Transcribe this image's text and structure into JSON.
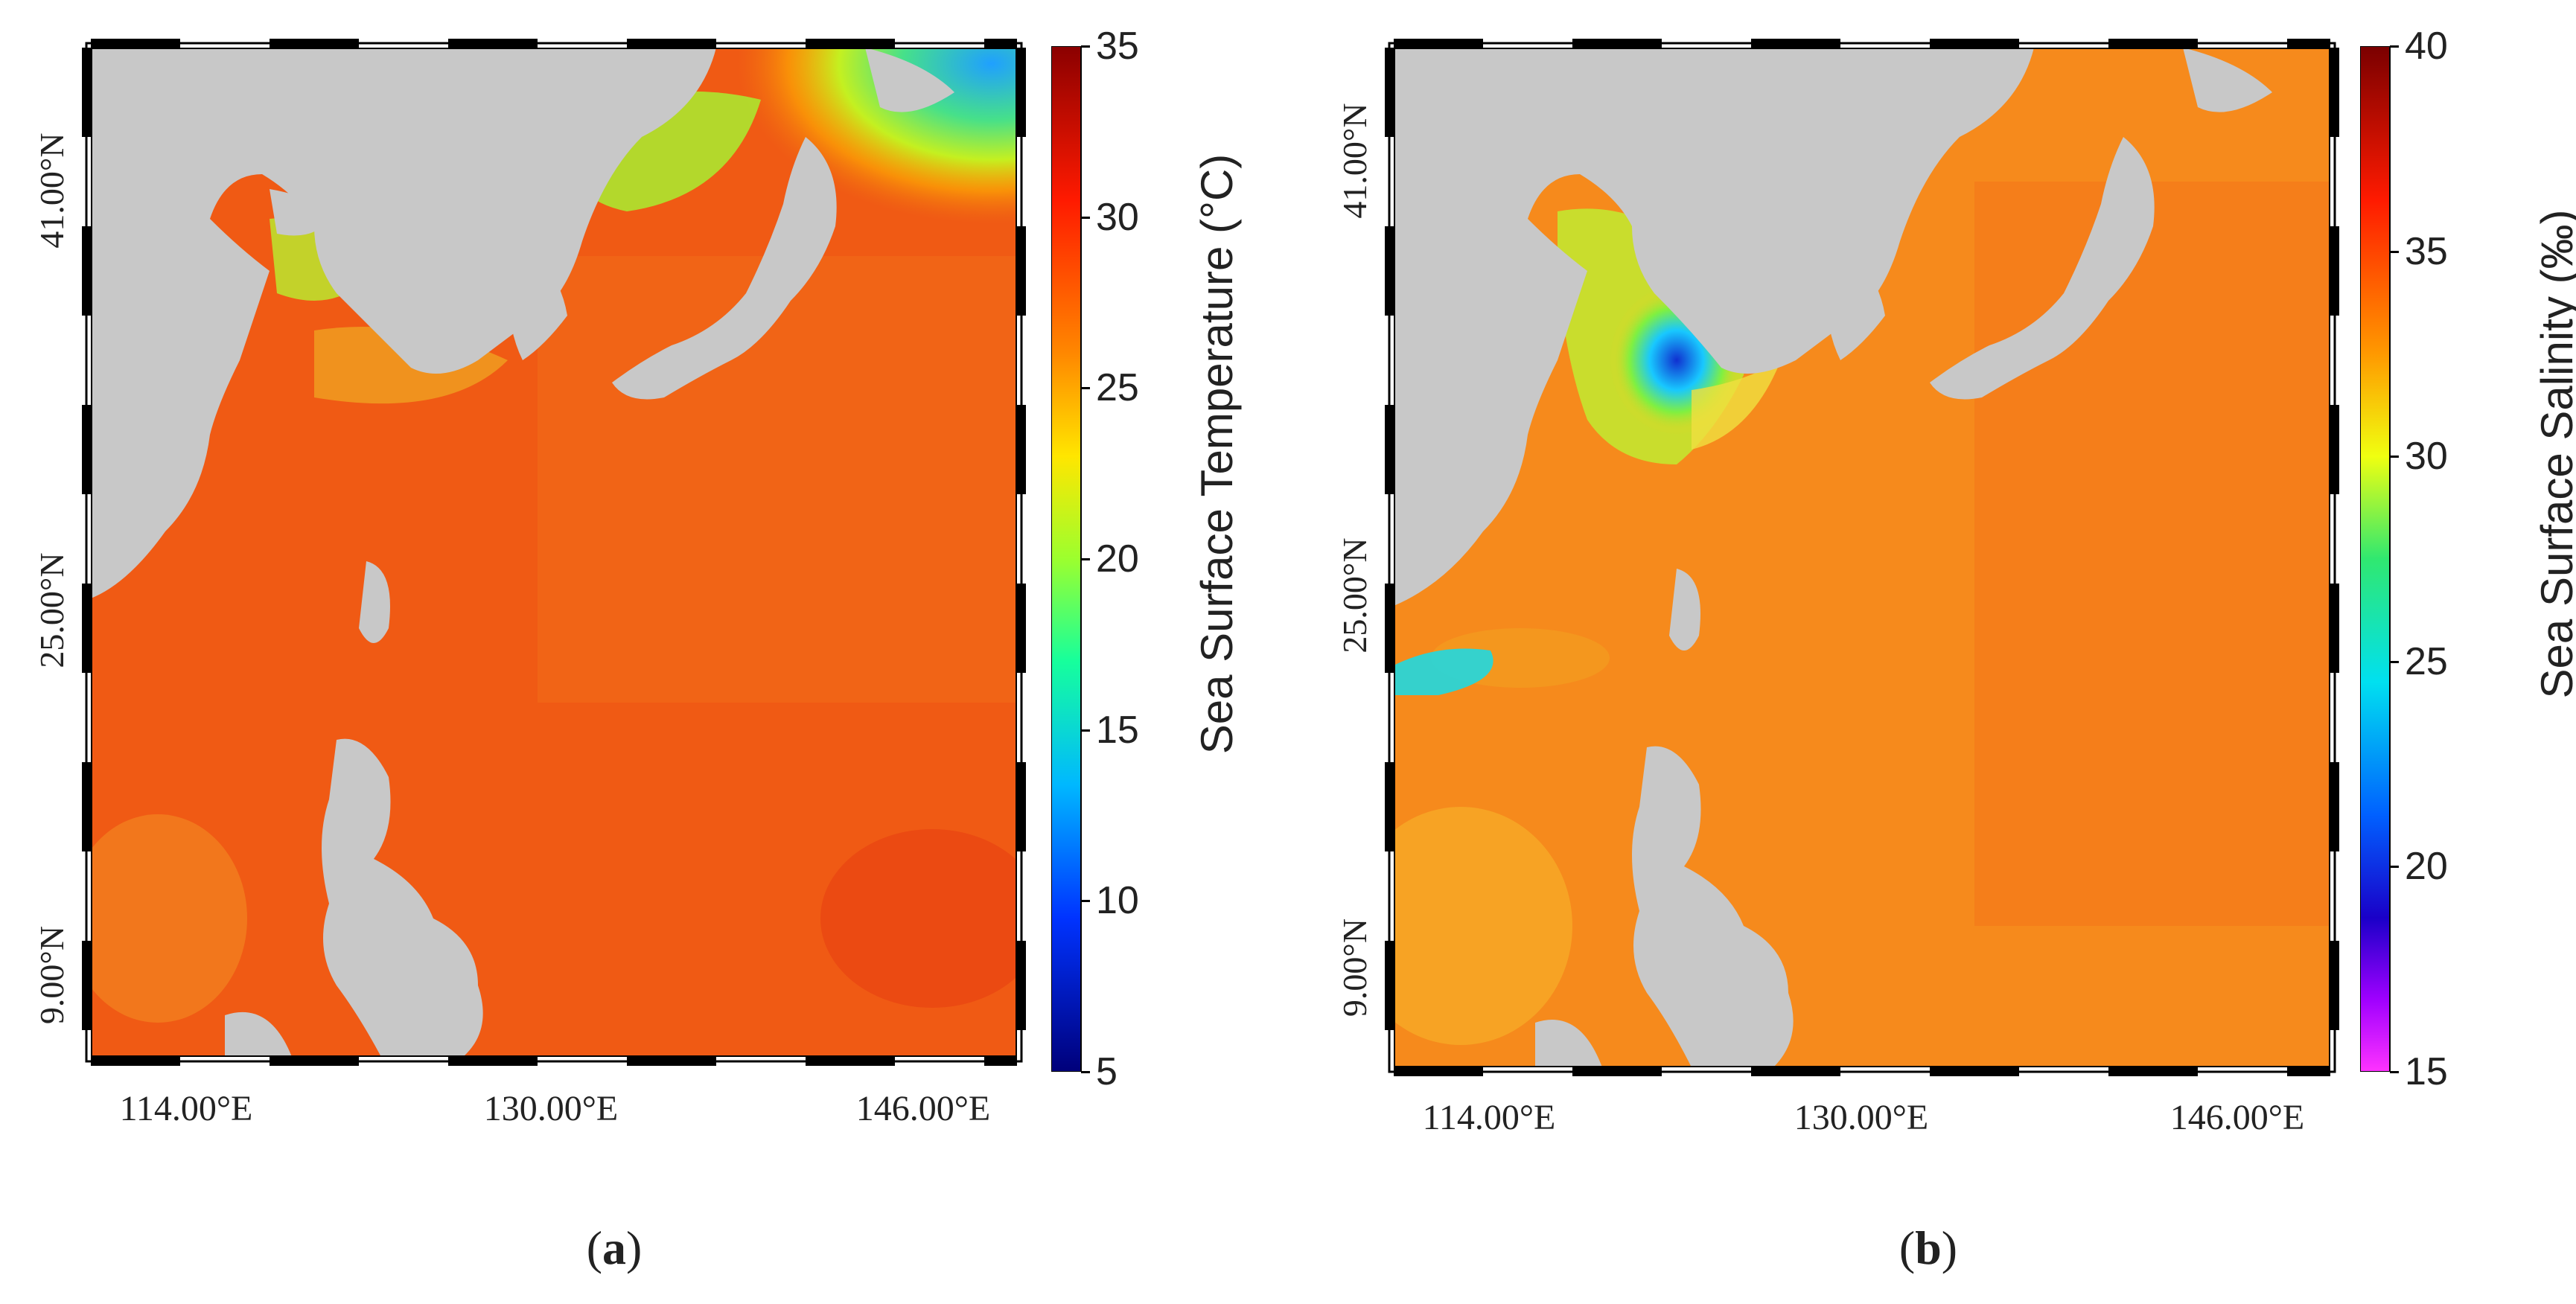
{
  "panels": [
    {
      "id": "a",
      "label_open": "(",
      "label_letter": "a",
      "label_close": ")",
      "lat_labels": [
        "41.00°N",
        "25.00°N",
        "9.00°N"
      ],
      "lon_labels": [
        "114.00°E",
        "130.00°E",
        "146.00°E"
      ],
      "colorbar": {
        "title": "Sea Surface Temperature (°C)",
        "ticks": [
          "35",
          "30",
          "25",
          "20",
          "15",
          "10",
          "5"
        ],
        "min": 5,
        "max": 35
      }
    },
    {
      "id": "b",
      "label_open": "(",
      "label_letter": "b",
      "label_close": ")",
      "lat_labels": [
        "41.00°N",
        "25.00°N",
        "9.00°N"
      ],
      "lon_labels": [
        "114.00°E",
        "130.00°E",
        "146.00°E"
      ],
      "colorbar": {
        "title": "Sea Surface Salinity (‰)",
        "ticks": [
          "40",
          "35",
          "30",
          "25",
          "20",
          "15"
        ],
        "min": 15,
        "max": 40
      }
    }
  ],
  "colors": {
    "land": "#c8c8c8",
    "sst_ocean": "#f05a14",
    "sss_ocean": "#f68a1c"
  }
}
